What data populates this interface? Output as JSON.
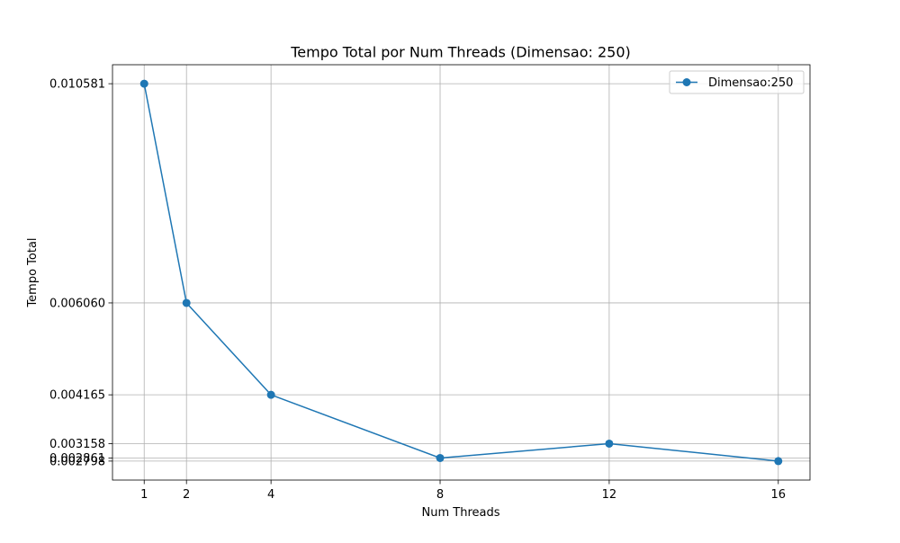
{
  "chart_data": {
    "type": "line",
    "title": "Tempo Total por Num Threads (Dimensao: 250)",
    "xlabel": "Num Threads",
    "ylabel": "Tempo Total",
    "x": [
      1,
      2,
      4,
      8,
      12,
      16
    ],
    "series": [
      {
        "name": "Dimensao:250",
        "values": [
          0.010581,
          0.00606,
          0.004165,
          0.002861,
          0.003158,
          0.002798
        ],
        "color": "#1f77b4",
        "marker": "circle"
      }
    ],
    "xticks": [
      1,
      2,
      4,
      8,
      12,
      16
    ],
    "xtick_labels": [
      "1",
      "2",
      "4",
      "8",
      "12",
      "16"
    ],
    "yticks": [
      0.010581,
      0.00606,
      0.004165,
      0.003158,
      0.002861,
      0.002798
    ],
    "ytick_labels": [
      "0.010581",
      "0.006060",
      "0.004165",
      "0.003158",
      "0.002861",
      "0.002798"
    ],
    "xlim": [
      0.25,
      16.75
    ],
    "ylim": [
      0.0024066,
      0.0109724
    ],
    "grid": true,
    "legend_position": "top-right"
  }
}
